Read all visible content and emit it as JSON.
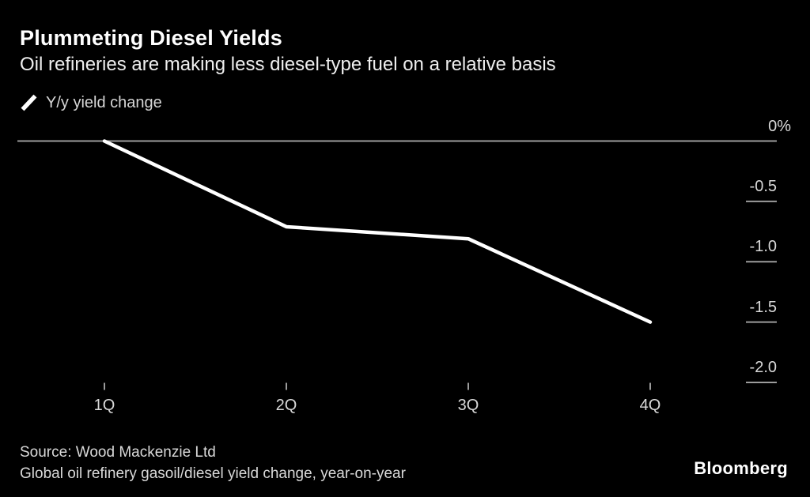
{
  "header": {
    "title": "Plummeting Diesel Yields",
    "subtitle": "Oil refineries are making less diesel-type fuel on a relative basis"
  },
  "legend": {
    "label": "Y/y yield change",
    "marker": "diagonal-line-swatch"
  },
  "chart_data": {
    "type": "line",
    "categories": [
      "1Q",
      "2Q",
      "3Q",
      "4Q"
    ],
    "series": [
      {
        "name": "Y/y yield change",
        "values": [
          0,
          -0.71,
          -0.81,
          -1.5
        ]
      }
    ],
    "title": "Plummeting Diesel Yields",
    "xlabel": "",
    "ylabel": "Y/y yield change (%)",
    "ylim": [
      -2.0,
      0
    ],
    "y_ticks": [
      {
        "value": 0,
        "label": "0%"
      },
      {
        "value": -0.5,
        "label": "-0.5"
      },
      {
        "value": -1.0,
        "label": "-1.0"
      },
      {
        "value": -1.5,
        "label": "-1.5"
      },
      {
        "value": -2.0,
        "label": "-2.0"
      }
    ],
    "grid": "zero-baseline-only",
    "legend_position": "top-left",
    "y_axis_side": "right"
  },
  "footer": {
    "source": "Source: Wood Mackenzie Ltd",
    "description": "Global oil refinery gasoil/diesel yield change, year-on-year",
    "brand": "Bloomberg"
  },
  "colors": {
    "background": "#000000",
    "title_text": "#ffffff",
    "subtitle_text": "#efefef",
    "axis_text": "#d8d8d8",
    "grid_line": "#9c9c9c",
    "series_line": "#ffffff"
  }
}
